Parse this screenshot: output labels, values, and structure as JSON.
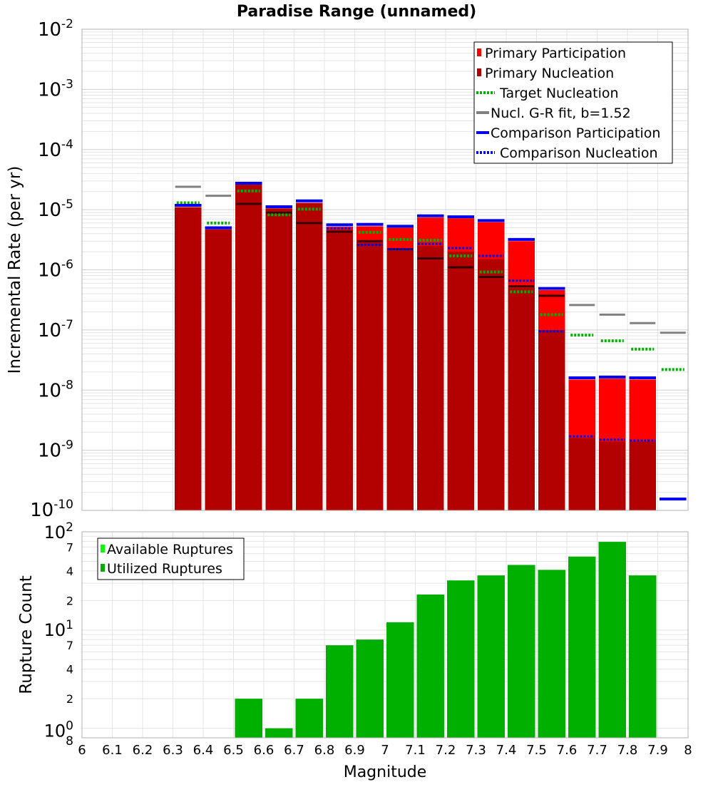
{
  "title": "Paradise Range (unnamed)",
  "colors": {
    "primary_participation": "#ff0000",
    "primary_nucleation": "#b30000",
    "target_nucleation": "#00b000",
    "gr_fit": "#808080",
    "comparison_participation": "#0000ee",
    "comparison_nucleation": "#0000ee",
    "available_ruptures": "#00ff00",
    "utilized_ruptures": "#00b000",
    "grid": "#e4e4e4",
    "dark_tick": "#330000"
  },
  "chart_data": [
    {
      "type": "bar",
      "title": "Paradise Range (unnamed)",
      "xlabel": "",
      "ylabel": "Incremental Rate (per yr)",
      "yscale": "log",
      "xlim": [
        6,
        8
      ],
      "ylim": [
        1e-10,
        0.01
      ],
      "y_tick_labels": [
        {
          "base": "10",
          "exp": "-10",
          "value": 1e-10
        },
        {
          "base": "10",
          "exp": "-9",
          "value": 1e-09
        },
        {
          "base": "10",
          "exp": "-8",
          "value": 1e-08
        },
        {
          "base": "10",
          "exp": "-7",
          "value": 1e-07
        },
        {
          "base": "10",
          "exp": "-6",
          "value": 1e-06
        },
        {
          "base": "10",
          "exp": "-5",
          "value": 1e-05
        },
        {
          "base": "10",
          "exp": "-4",
          "value": 0.0001
        },
        {
          "base": "10",
          "exp": "-3",
          "value": 0.001
        },
        {
          "base": "10",
          "exp": "-2",
          "value": 0.01
        }
      ],
      "grid": true,
      "legend_position": "top-right",
      "legend": [
        "Primary Participation",
        "Primary Nucleation",
        "Target Nucleation",
        "Nucl. G-R fit, b=1.52",
        "Comparison Participation",
        "Comparison Nucleation"
      ],
      "x": [
        6.35,
        6.45,
        6.55,
        6.65,
        6.75,
        6.85,
        6.95,
        7.05,
        7.15,
        7.25,
        7.35,
        7.45,
        7.55,
        7.65,
        7.75,
        7.85,
        7.95
      ],
      "series": [
        {
          "name": "Primary Participation",
          "values": [
            1.1e-05,
            4.7e-06,
            2.6e-05,
            1.05e-05,
            1.3e-05,
            5.2e-06,
            5.3e-06,
            5e-06,
            7.4e-06,
            7.2e-06,
            6.2e-06,
            3e-06,
            4.6e-07,
            1.5e-08,
            1.55e-08,
            1.5e-08,
            null
          ]
        },
        {
          "name": "Primary Nucleation",
          "values": [
            1.1e-05,
            4.7e-06,
            2.6e-05,
            1.05e-05,
            1.3e-05,
            4.6e-06,
            2.9e-06,
            2.1e-06,
            2.5e-06,
            2e-06,
            1.5e-06,
            5e-07,
            1e-07,
            1.6e-09,
            1.4e-09,
            1.4e-09,
            null
          ]
        },
        {
          "name": "Target Nucleation",
          "values": [
            1.3e-05,
            6e-06,
            2.05e-05,
            8.2e-06,
            1.02e-05,
            5.6e-06,
            4.2e-06,
            3.2e-06,
            3.1e-06,
            1.7e-06,
            9.2e-07,
            4.3e-07,
            1.8e-07,
            8.2e-08,
            6.6e-08,
            4.8e-08,
            2.2e-08
          ]
        },
        {
          "name": "Nucl. G-R fit, b=1.52",
          "values": [
            2.4e-05,
            1.7e-05,
            1.25e-05,
            8.9e-06,
            6e-06,
            4.3e-06,
            3e-06,
            2.2e-06,
            1.55e-06,
            1.1e-06,
            7.6e-07,
            5.3e-07,
            3.7e-07,
            2.6e-07,
            1.8e-07,
            1.3e-07,
            9e-08
          ]
        },
        {
          "name": "Comparison Participation",
          "values": [
            1.18e-05,
            5e-06,
            2.75e-05,
            1.12e-05,
            1.4e-05,
            5.6e-06,
            5.7e-06,
            5.3e-06,
            7.9e-06,
            7.6e-06,
            6.6e-06,
            3.2e-06,
            4.9e-07,
            1.6e-08,
            1.65e-08,
            1.6e-08,
            1.55e-10
          ]
        },
        {
          "name": "Comparison Nucleation",
          "values": [
            1.18e-05,
            5e-06,
            2.75e-05,
            1.12e-05,
            1.4e-05,
            4.9e-06,
            2.6e-06,
            2.2e-06,
            2.7e-06,
            2.3e-06,
            1.7e-06,
            6.6e-07,
            9.5e-08,
            1.7e-09,
            1.5e-09,
            1.45e-09,
            null
          ]
        }
      ]
    },
    {
      "type": "bar",
      "title": "",
      "xlabel": "Magnitude",
      "ylabel": "Rupture Count",
      "yscale": "log",
      "xlim": [
        6,
        8
      ],
      "ylim": [
        0.8,
        100
      ],
      "x_tick_labels": [
        "6",
        "6.1",
        "6.2",
        "6.3",
        "6.4",
        "6.5",
        "6.6",
        "6.7",
        "6.8",
        "6.9",
        "7",
        "7.1",
        "7.2",
        "7.3",
        "7.4",
        "7.5",
        "7.6",
        "7.7",
        "7.8",
        "7.9",
        "8"
      ],
      "y_major_tick_labels": [
        {
          "base": "10",
          "exp": "0",
          "value": 1
        },
        {
          "base": "10",
          "exp": "1",
          "value": 10
        },
        {
          "base": "10",
          "exp": "2",
          "value": 100
        }
      ],
      "y_minor_tick_labels": [
        {
          "label": "2",
          "value": 2
        },
        {
          "label": "4",
          "value": 4
        },
        {
          "label": "7",
          "value": 7
        },
        {
          "label": "2",
          "value": 20
        },
        {
          "label": "4",
          "value": 40
        },
        {
          "label": "7",
          "value": 70
        }
      ],
      "bottom_tick_label": {
        "label": "8",
        "value": 0.8
      },
      "grid": true,
      "legend_position": "top-left",
      "legend": [
        "Available Ruptures",
        "Utilized Ruptures"
      ],
      "x": [
        6.55,
        6.65,
        6.75,
        6.85,
        6.95,
        7.05,
        7.15,
        7.25,
        7.35,
        7.45,
        7.55,
        7.65,
        7.75,
        7.85
      ],
      "series": [
        {
          "name": "Utilized Ruptures",
          "values": [
            2,
            1,
            2,
            7,
            8,
            12,
            23,
            32,
            36,
            46,
            41,
            56,
            79,
            36
          ]
        }
      ]
    }
  ]
}
